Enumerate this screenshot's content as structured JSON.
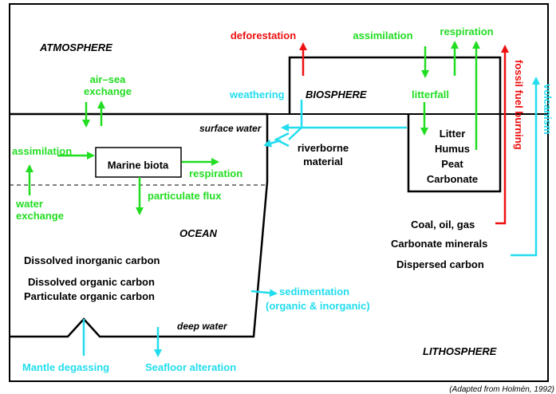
{
  "regions": {
    "atmosphere": "ATMOSPHERE",
    "biosphere": "BIOSPHERE",
    "ocean": "OCEAN",
    "lithosphere": "LITHOSPHERE",
    "surface_water": "surface water",
    "deep_water": "deep water"
  },
  "processes": {
    "deforestation": "deforestation",
    "assimilation_land": "assimilation",
    "respiration_land": "respiration",
    "fossil_fuel": "fossil fuel burning",
    "volcanism": "volcanism",
    "litterfall": "litterfall",
    "air_sea": [
      "air–sea",
      "exchange"
    ],
    "weathering": "weathering",
    "riverborne": [
      "riverborne",
      "material"
    ],
    "assimilation_ocean": "assimilation",
    "respiration_ocean": "respiration",
    "particulate_flux": "particulate flux",
    "water_exchange": [
      "water",
      "exchange"
    ],
    "sedimentation": [
      "sedimentation",
      "(organic & inorganic)"
    ],
    "mantle_degassing": "Mantle degassing",
    "seafloor_alteration": "Seafloor alteration"
  },
  "reservoirs": {
    "soil": [
      "Litter",
      "Humus",
      "Peat",
      "Carbonate"
    ],
    "marine_biota": "Marine biota",
    "lithosphere": [
      "Coal, oil, gas",
      "Carbonate minerals",
      "Dispersed carbon"
    ],
    "ocean": [
      "Dissolved inorganic carbon",
      "Dissolved organic carbon",
      "Particulate organic carbon"
    ]
  },
  "credit": "(Adapted from Holmén, 1992)"
}
